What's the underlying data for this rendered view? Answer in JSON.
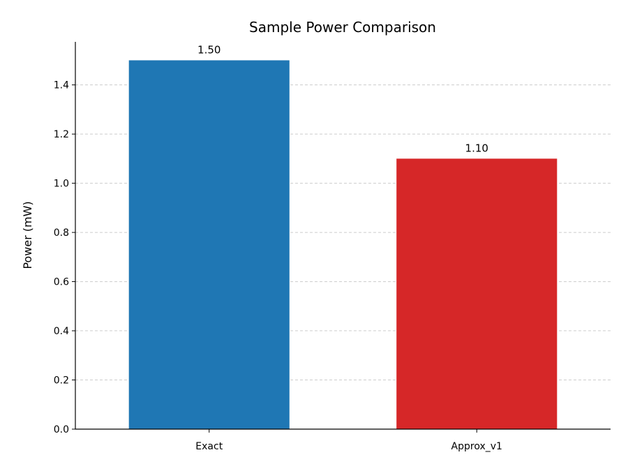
{
  "chart_data": {
    "type": "bar",
    "title": "Sample Power Comparison",
    "xlabel": "",
    "ylabel": "Power (mW)",
    "categories": [
      "Exact",
      "Approx_v1"
    ],
    "values": [
      1.5,
      1.1
    ],
    "value_labels": [
      "1.50",
      "1.10"
    ],
    "colors": [
      "#1f77b4",
      "#d62728"
    ],
    "ylim": [
      0,
      1.575
    ],
    "yticks": [
      0,
      0.2,
      0.4,
      0.6,
      0.8,
      1.0,
      1.2,
      1.4
    ],
    "ytick_labels": [
      "0.0",
      "0.2",
      "0.4",
      "0.6",
      "0.8",
      "1.0",
      "1.2",
      "1.4"
    ],
    "grid": "y-dashed",
    "grid_color": "#cccccc",
    "axis_color": "#000000"
  }
}
